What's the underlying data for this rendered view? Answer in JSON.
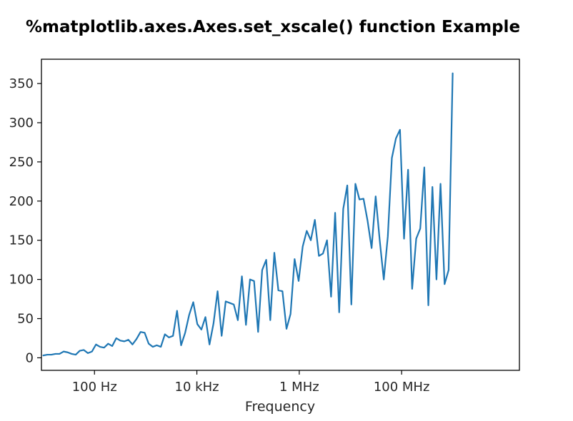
{
  "chart_data": {
    "type": "line",
    "title": "%matplotlib.axes.Axes.set_xscale() function Example",
    "xlabel": "Frequency",
    "ylabel": "",
    "xscale": "log",
    "xlim": [
      9.2,
      20000000000.0
    ],
    "ylim": [
      -16,
      381
    ],
    "grid": false,
    "legend": "none",
    "series_color": "#1f77b4",
    "x_ticks": [
      {
        "value": 100,
        "label": "100 Hz"
      },
      {
        "value": 10000,
        "label": "10 kHz"
      },
      {
        "value": 1000000,
        "label": "1 MHz"
      },
      {
        "value": 100000000,
        "label": "100 MHz"
      }
    ],
    "y_ticks": [
      0,
      50,
      100,
      150,
      200,
      250,
      300,
      350
    ],
    "series": [
      {
        "x_start": 10,
        "x_ratio": 1.2,
        "values": [
          3,
          4,
          4,
          5,
          5,
          8,
          7,
          5,
          4,
          9,
          10,
          6,
          8,
          17,
          14,
          13,
          18,
          15,
          25,
          22,
          21,
          23,
          17,
          24,
          33,
          32,
          18,
          14,
          16,
          14,
          30,
          26,
          28,
          60,
          16,
          32,
          55,
          71,
          43,
          36,
          52,
          17,
          44,
          85,
          28,
          72,
          70,
          68,
          48,
          104,
          42,
          100,
          98,
          33,
          112,
          125,
          48,
          134,
          86,
          85,
          37,
          56,
          126,
          98,
          142,
          162,
          150,
          176,
          130,
          133,
          150,
          78,
          185,
          58,
          190,
          220,
          68,
          222,
          202,
          203,
          175,
          140,
          206,
          150,
          100,
          155,
          255,
          280,
          291,
          152,
          240,
          88,
          152,
          165,
          243,
          67,
          218,
          100,
          222,
          94,
          112,
          363
        ]
      }
    ]
  }
}
